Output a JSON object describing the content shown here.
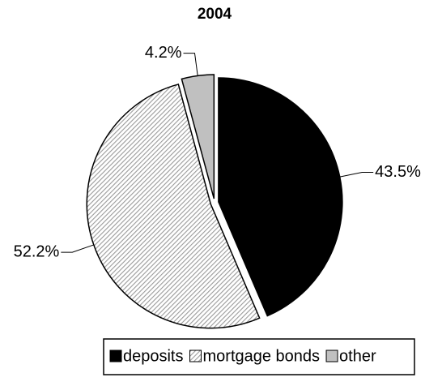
{
  "chart_data": {
    "type": "pie",
    "title": "2004",
    "categories": [
      "deposits",
      "mortgage bonds",
      "other"
    ],
    "values": [
      43.5,
      52.2,
      4.2
    ],
    "value_labels": [
      "43.5%",
      "52.2%",
      "4.2%"
    ],
    "colors": [
      "#000000",
      "#9a9a9a",
      "#c0c0c0"
    ],
    "hatched": [
      false,
      true,
      false
    ],
    "legend": "bottom"
  }
}
